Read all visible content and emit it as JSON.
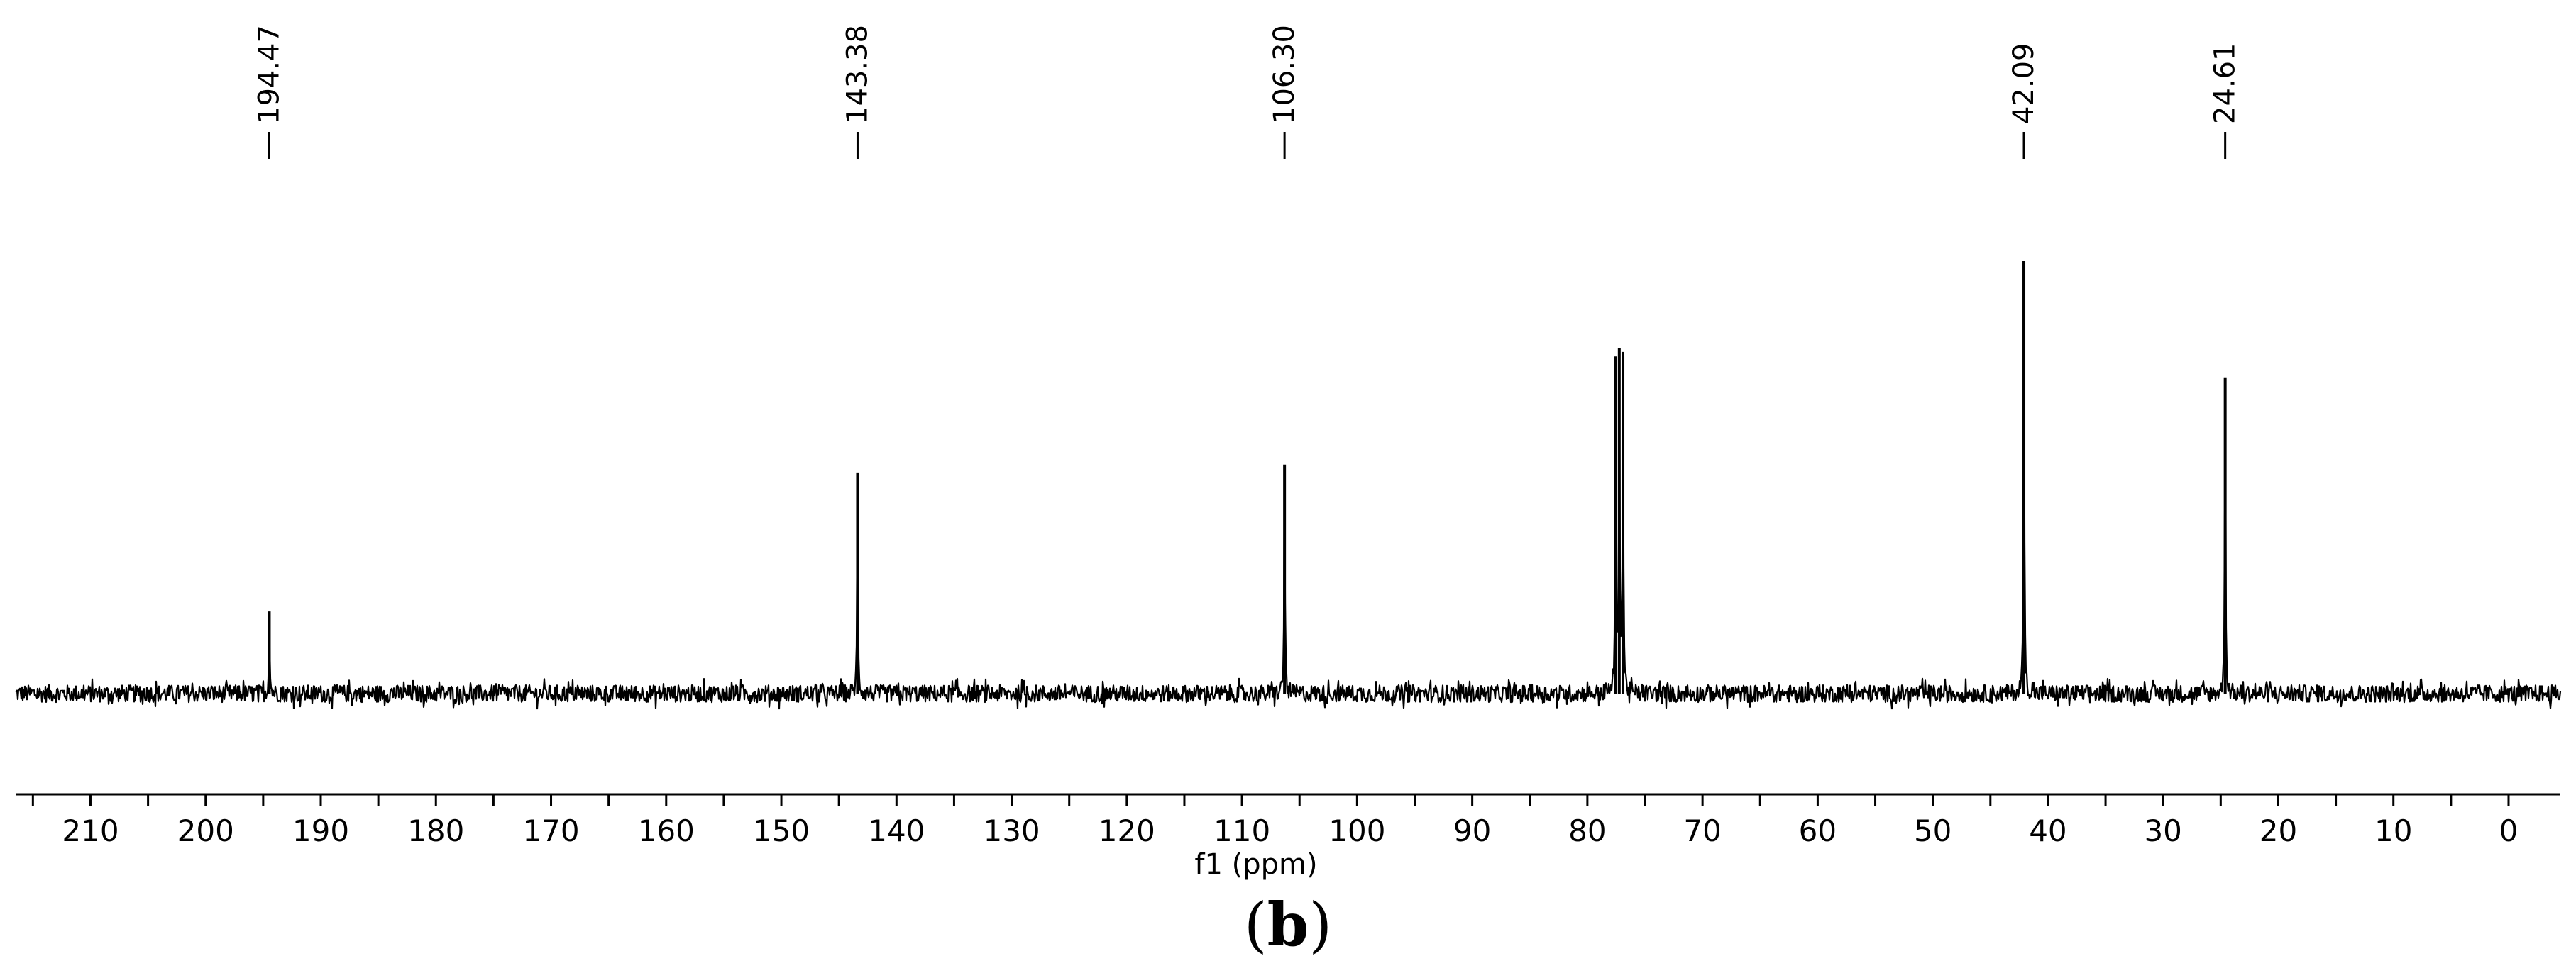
{
  "panel_label": {
    "open": "(",
    "letter": "b",
    "close": ")"
  },
  "chart_data": {
    "type": "line",
    "title": "",
    "xlabel": "f1 (ppm)",
    "ylabel": "",
    "x_reversed": true,
    "xlim": [
      216.5,
      -4.5
    ],
    "x_tick_labels": [
      "210",
      "200",
      "190",
      "180",
      "170",
      "160",
      "150",
      "140",
      "130",
      "120",
      "110",
      "100",
      "90",
      "80",
      "70",
      "60",
      "50",
      "40",
      "30",
      "20",
      "10",
      "0"
    ],
    "x_ticks": [
      210,
      200,
      190,
      180,
      170,
      160,
      150,
      140,
      130,
      120,
      110,
      100,
      90,
      80,
      70,
      60,
      50,
      40,
      30,
      20,
      10,
      0
    ],
    "minor_tick_step": 5,
    "y_axis_visible": false,
    "grid": false,
    "peak_labels": [
      "194.47",
      "143.38",
      "106.30",
      "42.09",
      "24.61"
    ],
    "peak_label_positions": [
      194.47,
      143.38,
      106.3,
      42.09,
      24.61
    ],
    "peaks": [
      {
        "ppm": 194.47,
        "intensity": 0.19
      },
      {
        "ppm": 143.38,
        "intensity": 0.51
      },
      {
        "ppm": 106.3,
        "intensity": 0.53
      },
      {
        "ppm": 77.55,
        "intensity": 0.78
      },
      {
        "ppm": 77.23,
        "intensity": 0.8
      },
      {
        "ppm": 76.91,
        "intensity": 0.78
      },
      {
        "ppm": 42.09,
        "intensity": 1.0
      },
      {
        "ppm": 24.61,
        "intensity": 0.73
      }
    ],
    "baseline_noise": 0.025,
    "colors": {
      "line": "#000000",
      "background": "#ffffff"
    }
  }
}
